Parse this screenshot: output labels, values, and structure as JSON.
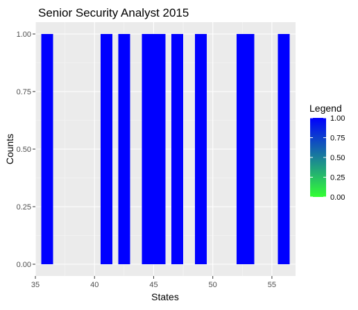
{
  "chart_data": {
    "type": "bar",
    "title": "Senior Security Analyst 2015",
    "xlabel": "States",
    "ylabel": "Counts",
    "x": [
      36,
      41,
      42.5,
      44.5,
      45,
      45.5,
      47,
      49,
      52.5,
      53,
      56
    ],
    "values": [
      1,
      1,
      1,
      1,
      1,
      1,
      1,
      1,
      1,
      1,
      1
    ],
    "xlim": [
      35,
      57
    ],
    "ylim": [
      0,
      1
    ],
    "x_ticks": [
      "35",
      "40",
      "45",
      "50",
      "55"
    ],
    "y_ticks": [
      "0.00",
      "0.25",
      "0.50",
      "0.75",
      "1.00"
    ],
    "grid": true,
    "bar_color": "#0000FF",
    "panel_color": "#EBEBEB",
    "legend": {
      "title": "Legend",
      "position": "right",
      "labels": [
        "1.00",
        "0.75",
        "0.50",
        "0.25",
        "0.00"
      ],
      "gradient_low": "#33FF33",
      "gradient_high": "#0000FF"
    }
  }
}
